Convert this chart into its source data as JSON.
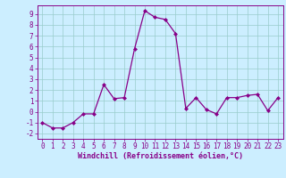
{
  "x": [
    0,
    1,
    2,
    3,
    4,
    5,
    6,
    7,
    8,
    9,
    10,
    11,
    12,
    13,
    14,
    15,
    16,
    17,
    18,
    19,
    20,
    21,
    22,
    23
  ],
  "y": [
    -1,
    -1.5,
    -1.5,
    -1,
    -0.2,
    -0.2,
    2.5,
    1.2,
    1.3,
    5.8,
    9.3,
    8.7,
    8.5,
    7.2,
    0.3,
    1.3,
    0.2,
    -0.2,
    1.3,
    1.3,
    1.5,
    1.6,
    0.1,
    1.3
  ],
  "line_color": "#880088",
  "marker": "D",
  "markersize": 2.0,
  "linewidth": 0.9,
  "bg_color": "#cceeff",
  "grid_color": "#99cccc",
  "xlabel": "Windchill (Refroidissement éolien,°C)",
  "tick_color": "#880088",
  "ylim": [
    -2.5,
    9.8
  ],
  "xlim": [
    -0.5,
    23.5
  ],
  "yticks": [
    -2,
    -1,
    0,
    1,
    2,
    3,
    4,
    5,
    6,
    7,
    8,
    9
  ],
  "xticks": [
    0,
    1,
    2,
    3,
    4,
    5,
    6,
    7,
    8,
    9,
    10,
    11,
    12,
    13,
    14,
    15,
    16,
    17,
    18,
    19,
    20,
    21,
    22,
    23
  ],
  "tick_fontsize": 5.5,
  "xlabel_fontsize": 6.0
}
